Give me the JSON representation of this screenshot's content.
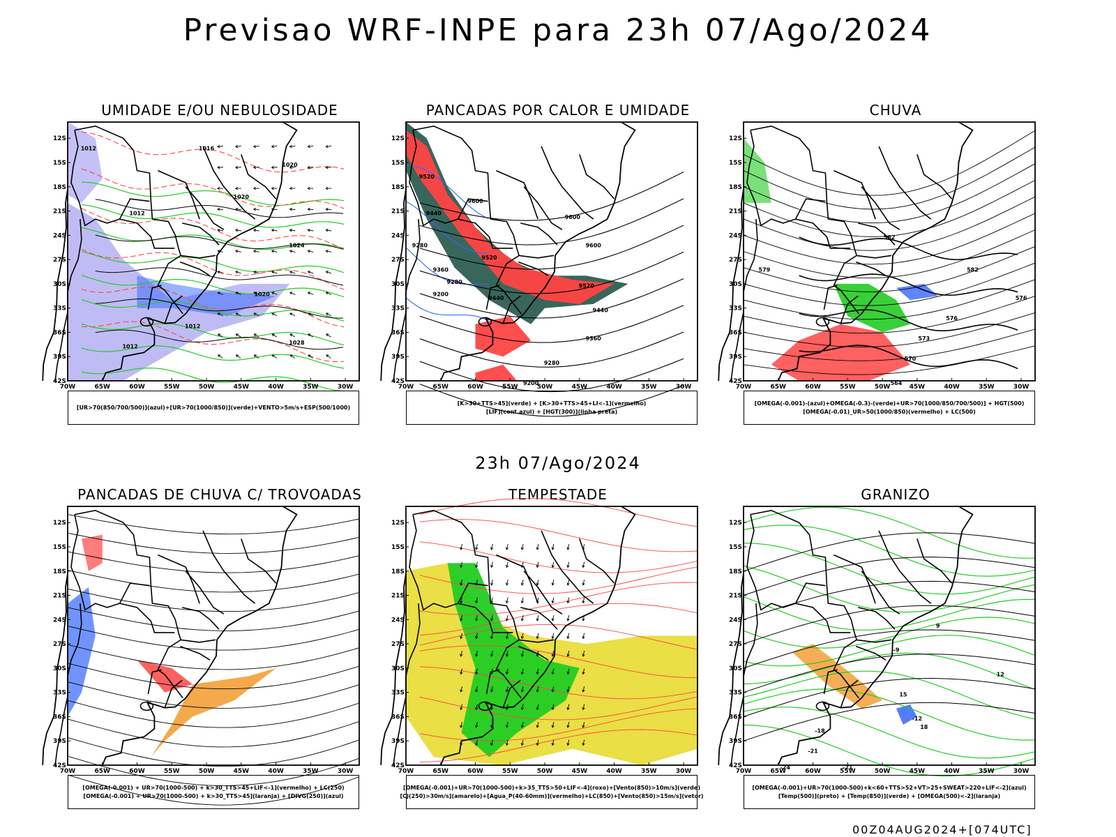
{
  "title": "Previsao WRF-INPE  para 23h 07/Ago/2024",
  "subtitle": "23h 07/Ago/2024",
  "footer": "00Z04AUG2024+[074UTC]",
  "colors": {
    "blue": "#3366ff",
    "green": "#22cc22",
    "red": "#ff4444",
    "dark_green": "#2e5e52",
    "yellow": "#e8dc30",
    "orange": "#f39a2a",
    "lavender": "#a9a6f2",
    "purple": "#9933cc"
  },
  "axes": {
    "lat_ticks": [
      "12S",
      "15S",
      "18S",
      "21S",
      "24S",
      "27S",
      "30S",
      "33S",
      "36S",
      "39S",
      "42S"
    ],
    "lon_ticks": [
      "70W",
      "65W",
      "60W",
      "55W",
      "50W",
      "45W",
      "40W",
      "35W",
      "30W"
    ],
    "lat_range": [
      -42,
      -10
    ],
    "lon_range": [
      -70,
      -28
    ]
  },
  "chart_data": [
    {
      "type": "map",
      "title": "UMIDADE E/OU NEBULOSIDADE",
      "legend": [
        "[UR>70(850/700/500)](azul)+[UR>70(1000/850)](verde)+VENTO>5m/s+ESP(500/1000)"
      ],
      "fields": [
        "wind_vectors",
        "isobars",
        "thickness"
      ],
      "contour_labels": [
        {
          "text": "1012",
          "lon": -67,
          "lat": -13.5
        },
        {
          "text": "1016",
          "lon": -50,
          "lat": -13.5
        },
        {
          "text": "1020",
          "lon": -45,
          "lat": -19.5
        },
        {
          "text": "1020",
          "lon": -38,
          "lat": -15.5
        },
        {
          "text": "1024",
          "lon": -37,
          "lat": -25.5
        },
        {
          "text": "1020",
          "lon": -42,
          "lat": -31.5
        },
        {
          "text": "1012",
          "lon": -60,
          "lat": -21.5
        },
        {
          "text": "1012",
          "lon": -52,
          "lat": -35.5
        },
        {
          "text": "1012",
          "lon": -61,
          "lat": -38
        },
        {
          "text": "1028",
          "lon": -37,
          "lat": -37.5
        }
      ]
    },
    {
      "type": "map",
      "title": "PANCADAS POR CALOR E UMIDADE",
      "legend": [
        "[K>30+TTS>45](verde) + [K>30+TTS>45+LI<-1](vermelho)",
        "[LIF](cont.azul) + [HGT(300)](linha preta)"
      ],
      "fields": [
        "hgt300_contours"
      ],
      "contour_labels": [
        {
          "text": "9520",
          "lon": -67,
          "lat": -17
        },
        {
          "text": "9600",
          "lon": -60,
          "lat": -20
        },
        {
          "text": "9440",
          "lon": -66,
          "lat": -21.5
        },
        {
          "text": "9600",
          "lon": -46,
          "lat": -22
        },
        {
          "text": "9600",
          "lon": -43,
          "lat": -25.5
        },
        {
          "text": "9280",
          "lon": -68,
          "lat": -25.5
        },
        {
          "text": "9520",
          "lon": -58,
          "lat": -27
        },
        {
          "text": "9360",
          "lon": -65,
          "lat": -28.5
        },
        {
          "text": "9280",
          "lon": -63,
          "lat": -30
        },
        {
          "text": "9200",
          "lon": -65,
          "lat": -31.5
        },
        {
          "text": "9440",
          "lon": -57,
          "lat": -32
        },
        {
          "text": "9520",
          "lon": -44,
          "lat": -30.5
        },
        {
          "text": "9440",
          "lon": -42,
          "lat": -33.5
        },
        {
          "text": "9360",
          "lon": -43,
          "lat": -37
        },
        {
          "text": "9280",
          "lon": -49,
          "lat": -40
        },
        {
          "text": "9200",
          "lon": -52,
          "lat": -42.5
        }
      ]
    },
    {
      "type": "map",
      "title": "CHUVA",
      "legend": [
        "[OMEGA(-0.001)-(azul)+OMEGA(-0.3)-(verde)+UR>70(1000/850/700/500)] + HGT(500)",
        "[OMEGA(-0.01)_UR>50(1000/850)(vermelho) + LC(500)"
      ],
      "fields": [
        "streamlines",
        "hgt500_contours"
      ],
      "contour_labels": [
        {
          "text": "582",
          "lon": -49,
          "lat": -24.5
        },
        {
          "text": "582",
          "lon": -37,
          "lat": -28.5
        },
        {
          "text": "579",
          "lon": -67,
          "lat": -28.5
        },
        {
          "text": "576",
          "lon": -30,
          "lat": -32
        },
        {
          "text": "576",
          "lon": -40,
          "lat": -34.5
        },
        {
          "text": "573",
          "lon": -44,
          "lat": -37
        },
        {
          "text": "570",
          "lon": -46,
          "lat": -39.5
        },
        {
          "text": "564",
          "lon": -48,
          "lat": -42.5
        }
      ]
    },
    {
      "type": "map",
      "title": "PANCADAS DE CHUVA C/ TROVOADAS",
      "legend": [
        "[OMEGA(-0.001) + UR>70(1000-500) + k>30_TTS>45+LIF<-1](vermelho) + LC(250)",
        "[OMEGA(-0.001) + UR>70(1000-500) + k>30_TTS>45](laranja) + [DIVG(250)](azul)"
      ],
      "fields": [
        "streamlines_250"
      ],
      "contour_labels": []
    },
    {
      "type": "map",
      "title": "TEMPESTADE",
      "legend": [
        "[OMEGA(-0.001)+UR>70(1000-500)+k>35_TTS>50+LIF<-4](roxo)+[Vento(850)>10m/s](verde)",
        "[CJ(250)>30m/s](amarelo)+[Agua_P(40-60mm)](vermelho)+LC(850)+[Vento(850)>15m/s](vetor)"
      ],
      "fields": [
        "streamlines_850",
        "wind_vectors",
        "jet_250"
      ],
      "contour_labels": []
    },
    {
      "type": "map",
      "title": "GRANIZO",
      "legend": [
        "[OMEGA(-0.001)+UR>70(1000-500)+k<60+TTS>52+VT>25+SWEAT>220+LIF<-2](azul)",
        "[Temp(500)](preto) + [Temp(850)](verde) + [OMEGA(500)<-2](laranja)"
      ],
      "fields": [
        "temp500",
        "temp850"
      ],
      "contour_labels": [
        {
          "text": "9",
          "lon": -42,
          "lat": -25
        },
        {
          "text": "12",
          "lon": -33,
          "lat": -31
        },
        {
          "text": "15",
          "lon": -47,
          "lat": -33.5
        },
        {
          "text": "18",
          "lon": -44,
          "lat": -37.5
        },
        {
          "text": "-9",
          "lon": -48,
          "lat": -28
        },
        {
          "text": "-12",
          "lon": -45,
          "lat": -36.5
        },
        {
          "text": "-21",
          "lon": -60,
          "lat": -40.5
        },
        {
          "text": "-24",
          "lon": -64,
          "lat": -42.5
        },
        {
          "text": "-21",
          "lon": -55,
          "lat": -42.5
        },
        {
          "text": "-18",
          "lon": -59,
          "lat": -38
        }
      ]
    }
  ]
}
